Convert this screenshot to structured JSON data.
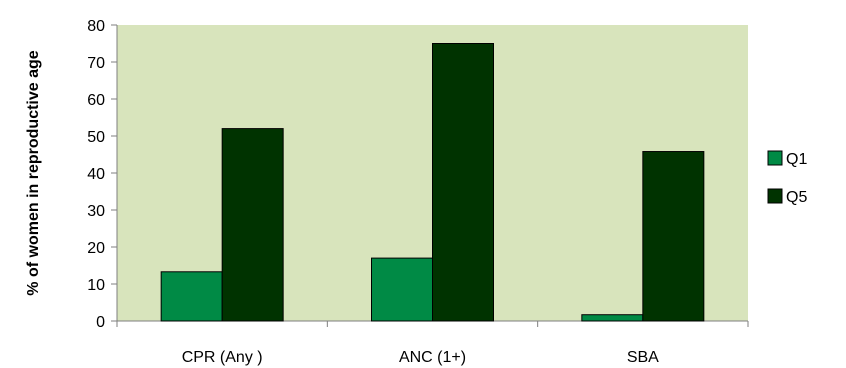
{
  "chart_data": {
    "type": "bar",
    "categories": [
      "CPR (Any )",
      "ANC (1+)",
      "SBA"
    ],
    "series": [
      {
        "name": "Q1",
        "values": [
          13.3,
          17,
          1.7
        ],
        "color": "#008a45"
      },
      {
        "name": "Q5",
        "values": [
          52,
          75,
          45.8
        ],
        "color": "#003300"
      }
    ],
    "ylabel": "% of women in reproductive age",
    "xlabel": "",
    "ylim": [
      0,
      80
    ],
    "yticks": [
      0,
      10,
      20,
      30,
      40,
      50,
      60,
      70,
      80
    ],
    "plot_background": "#d8e4bc",
    "legend_position": "right",
    "grid": false
  }
}
